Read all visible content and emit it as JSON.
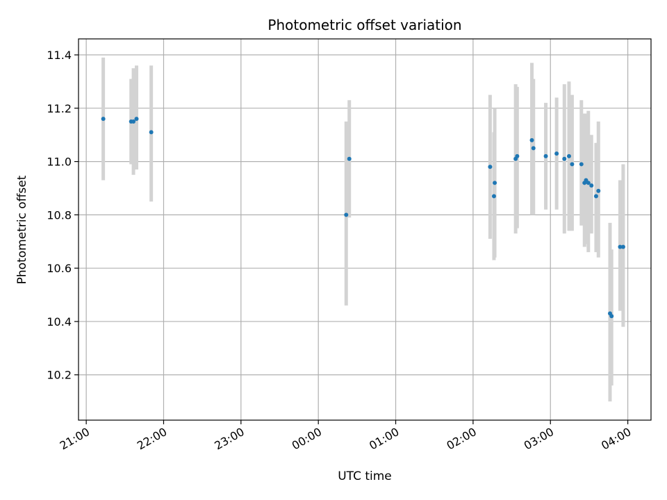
{
  "chart_data": {
    "type": "scatter",
    "title": "Photometric offset variation",
    "xlabel": "UTC time",
    "ylabel": "Photometric offset",
    "x_unit": "hours since 21:00 UTC",
    "xlim": [
      -0.1,
      7.3
    ],
    "ylim": [
      10.03,
      11.46
    ],
    "xticks": [
      {
        "value": 0,
        "label": "21:00"
      },
      {
        "value": 1,
        "label": "22:00"
      },
      {
        "value": 2,
        "label": "23:00"
      },
      {
        "value": 3,
        "label": "00:00"
      },
      {
        "value": 4,
        "label": "01:00"
      },
      {
        "value": 5,
        "label": "02:00"
      },
      {
        "value": 6,
        "label": "03:00"
      },
      {
        "value": 7,
        "label": "04:00"
      }
    ],
    "yticks": [
      {
        "value": 10.2,
        "label": "10.2"
      },
      {
        "value": 10.4,
        "label": "10.4"
      },
      {
        "value": 10.6,
        "label": "10.6"
      },
      {
        "value": 10.8,
        "label": "10.8"
      },
      {
        "value": 11.0,
        "label": "11.0"
      },
      {
        "value": 11.2,
        "label": "11.2"
      },
      {
        "value": 11.4,
        "label": "11.4"
      }
    ],
    "grid": true,
    "marker_color": "#1f77b4",
    "errorbar_color": "#d3d3d3",
    "series": [
      {
        "name": "offset",
        "points": [
          {
            "x": 0.22,
            "y": 11.16,
            "lo": 10.93,
            "hi": 11.39
          },
          {
            "x": 0.58,
            "y": 11.15,
            "lo": 10.99,
            "hi": 11.31
          },
          {
            "x": 0.61,
            "y": 11.15,
            "lo": 10.95,
            "hi": 11.35
          },
          {
            "x": 0.65,
            "y": 11.16,
            "lo": 10.97,
            "hi": 11.36
          },
          {
            "x": 0.84,
            "y": 11.11,
            "lo": 10.85,
            "hi": 11.36
          },
          {
            "x": 3.36,
            "y": 10.8,
            "lo": 10.46,
            "hi": 11.15
          },
          {
            "x": 3.4,
            "y": 11.01,
            "lo": 10.79,
            "hi": 11.23
          },
          {
            "x": 5.22,
            "y": 10.98,
            "lo": 10.71,
            "hi": 11.25
          },
          {
            "x": 5.27,
            "y": 10.87,
            "lo": 10.63,
            "hi": 11.11
          },
          {
            "x": 5.28,
            "y": 10.92,
            "lo": 10.64,
            "hi": 11.2
          },
          {
            "x": 5.55,
            "y": 11.01,
            "lo": 10.73,
            "hi": 11.29
          },
          {
            "x": 5.57,
            "y": 11.02,
            "lo": 10.75,
            "hi": 11.28
          },
          {
            "x": 5.76,
            "y": 11.08,
            "lo": 10.8,
            "hi": 11.37
          },
          {
            "x": 5.78,
            "y": 11.05,
            "lo": 10.8,
            "hi": 11.31
          },
          {
            "x": 5.94,
            "y": 11.02,
            "lo": 10.82,
            "hi": 11.22
          },
          {
            "x": 6.08,
            "y": 11.03,
            "lo": 10.82,
            "hi": 11.24
          },
          {
            "x": 6.18,
            "y": 11.01,
            "lo": 10.73,
            "hi": 11.29
          },
          {
            "x": 6.24,
            "y": 11.02,
            "lo": 10.74,
            "hi": 11.3
          },
          {
            "x": 6.28,
            "y": 10.99,
            "lo": 10.74,
            "hi": 11.25
          },
          {
            "x": 6.4,
            "y": 10.99,
            "lo": 10.76,
            "hi": 11.23
          },
          {
            "x": 6.44,
            "y": 10.92,
            "lo": 10.68,
            "hi": 11.18
          },
          {
            "x": 6.46,
            "y": 10.93,
            "lo": 10.69,
            "hi": 11.18
          },
          {
            "x": 6.49,
            "y": 10.92,
            "lo": 10.66,
            "hi": 11.19
          },
          {
            "x": 6.53,
            "y": 10.91,
            "lo": 10.73,
            "hi": 11.1
          },
          {
            "x": 6.59,
            "y": 10.87,
            "lo": 10.66,
            "hi": 11.07
          },
          {
            "x": 6.62,
            "y": 10.89,
            "lo": 10.64,
            "hi": 11.15
          },
          {
            "x": 6.77,
            "y": 10.43,
            "lo": 10.1,
            "hi": 10.77
          },
          {
            "x": 6.79,
            "y": 10.42,
            "lo": 10.16,
            "hi": 10.67
          },
          {
            "x": 6.9,
            "y": 10.68,
            "lo": 10.44,
            "hi": 10.93
          },
          {
            "x": 6.94,
            "y": 10.68,
            "lo": 10.38,
            "hi": 10.99
          }
        ]
      }
    ]
  }
}
